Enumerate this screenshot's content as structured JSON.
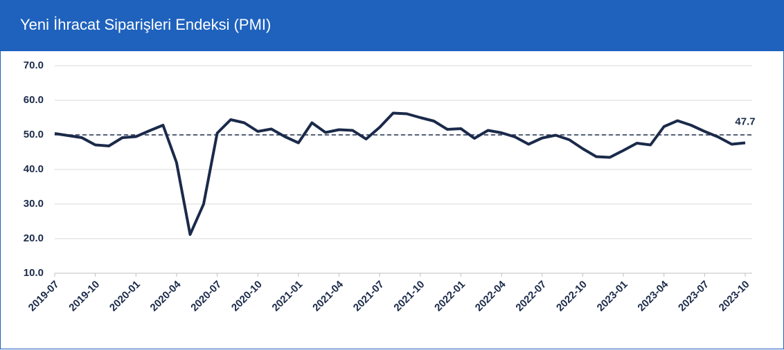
{
  "chart_data": {
    "type": "line",
    "title": "Yeni İhracat Siparişleri Endeksi (PMI)",
    "categories": [
      "2019-07",
      null,
      null,
      "2019-10",
      null,
      null,
      "2020-01",
      null,
      null,
      "2020-04",
      null,
      null,
      "2020-07",
      null,
      null,
      "2020-10",
      null,
      null,
      "2021-01",
      null,
      null,
      "2021-04",
      null,
      null,
      "2021-07",
      null,
      null,
      "2021-10",
      null,
      null,
      "2022-01",
      null,
      null,
      "2022-04",
      null,
      null,
      "2022-07",
      null,
      null,
      "2022-10",
      null,
      null,
      "2023-01",
      null,
      null,
      "2023-04",
      null,
      null,
      "2023-07",
      null,
      null,
      "2023-10"
    ],
    "series": [
      {
        "name": "PMI",
        "color": "#1b2a4a",
        "values": [
          50.4,
          49.8,
          49.2,
          47.1,
          46.8,
          49.2,
          49.5,
          51.2,
          52.8,
          42,
          21.2,
          30,
          50.5,
          54.4,
          53.5,
          51,
          51.7,
          49.5,
          47.7,
          53.5,
          50.7,
          51.5,
          51.3,
          48.8,
          52.2,
          56.3,
          56.1,
          55,
          54,
          51.6,
          51.8,
          49,
          51.3,
          50.6,
          49.4,
          47.3,
          49.1,
          49.9,
          48.6,
          46,
          43.7,
          43.5,
          45.5,
          47.6,
          47.1,
          52.4,
          54.1,
          52.8,
          51,
          49.4,
          47.3,
          47.7
        ]
      }
    ],
    "reference_line": 50,
    "annotation": "47.7",
    "ylim": [
      10,
      70
    ],
    "yticks": [
      {
        "value": 10,
        "label": "10.0"
      },
      {
        "value": 20,
        "label": "20.0"
      },
      {
        "value": 30,
        "label": "30.0"
      },
      {
        "value": 40,
        "label": "40.0"
      },
      {
        "value": 50,
        "label": "50.0"
      },
      {
        "value": 60,
        "label": "60.0"
      },
      {
        "value": 70,
        "label": "70.0"
      }
    ],
    "grid": true
  }
}
